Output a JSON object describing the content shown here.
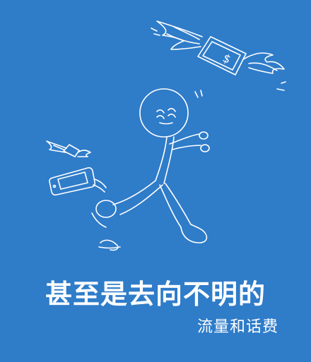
{
  "colors": {
    "background": "#2f7cc9",
    "line": "#ffffff",
    "text": "#ffffff"
  },
  "illustration": {
    "icons": [
      "flying-money-icon",
      "running-stick-figure-icon",
      "smartphone-icon"
    ],
    "money_symbol": "$"
  },
  "caption": {
    "headline": "甚至是去向不明的",
    "subline": "流量和话费"
  }
}
